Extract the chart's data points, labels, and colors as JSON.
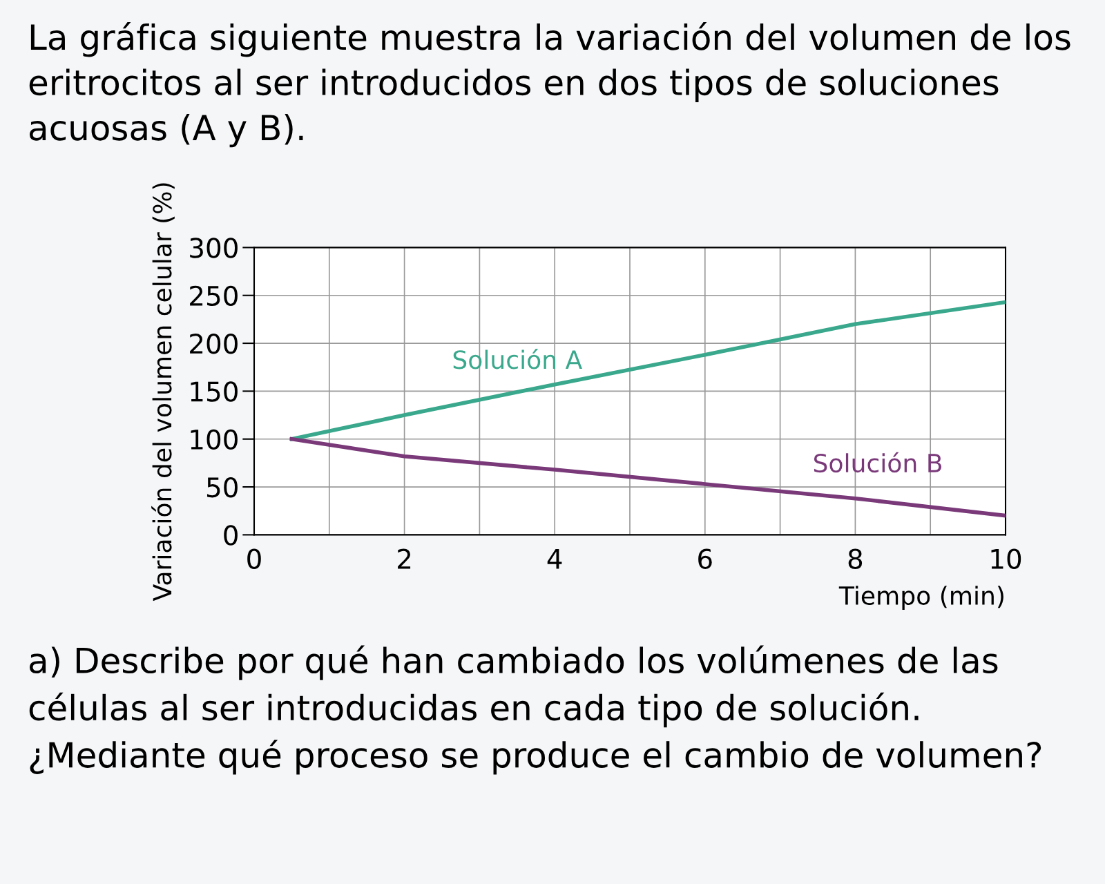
{
  "chart_data": {
    "type": "line",
    "title": "La gráfica siguiente muestra la variación del volumen de los eritrocitos al ser introducidos en dos tipos de soluciones acuosas (A y B).",
    "xlabel": "Tiempo (min)",
    "ylabel": "Variación del volumen celular (%)",
    "x": [
      0.5,
      2,
      4,
      6,
      8,
      10
    ],
    "series": [
      {
        "name": "Solución A",
        "color": "#3aa88c",
        "values": [
          100,
          125,
          157,
          188,
          220,
          243
        ]
      },
      {
        "name": "Solución B",
        "color": "#7a3a7a",
        "values": [
          100,
          82,
          68,
          53,
          38,
          20
        ]
      }
    ],
    "xlim": [
      0,
      10
    ],
    "xticks": [
      0,
      {
        "value": 1,
        "label": null
      },
      2,
      {
        "value": 3,
        "label": null
      },
      4,
      {
        "value": 5,
        "label": null
      },
      6,
      {
        "value": 7,
        "label": null
      },
      8,
      {
        "value": 9,
        "label": null
      },
      10
    ],
    "ylim": [
      0,
      300
    ],
    "yticks": [
      0,
      50,
      100,
      150,
      200,
      250,
      300
    ],
    "grid": true,
    "legend": false,
    "marker": "none",
    "line_style": "solid",
    "annotations": [
      "a) Describe por qué han cambiado los volúmenes de las células al ser introducidas en cada tipo de solución. ¿Mediante qué proceso se produce el cambio de volumen?"
    ]
  }
}
